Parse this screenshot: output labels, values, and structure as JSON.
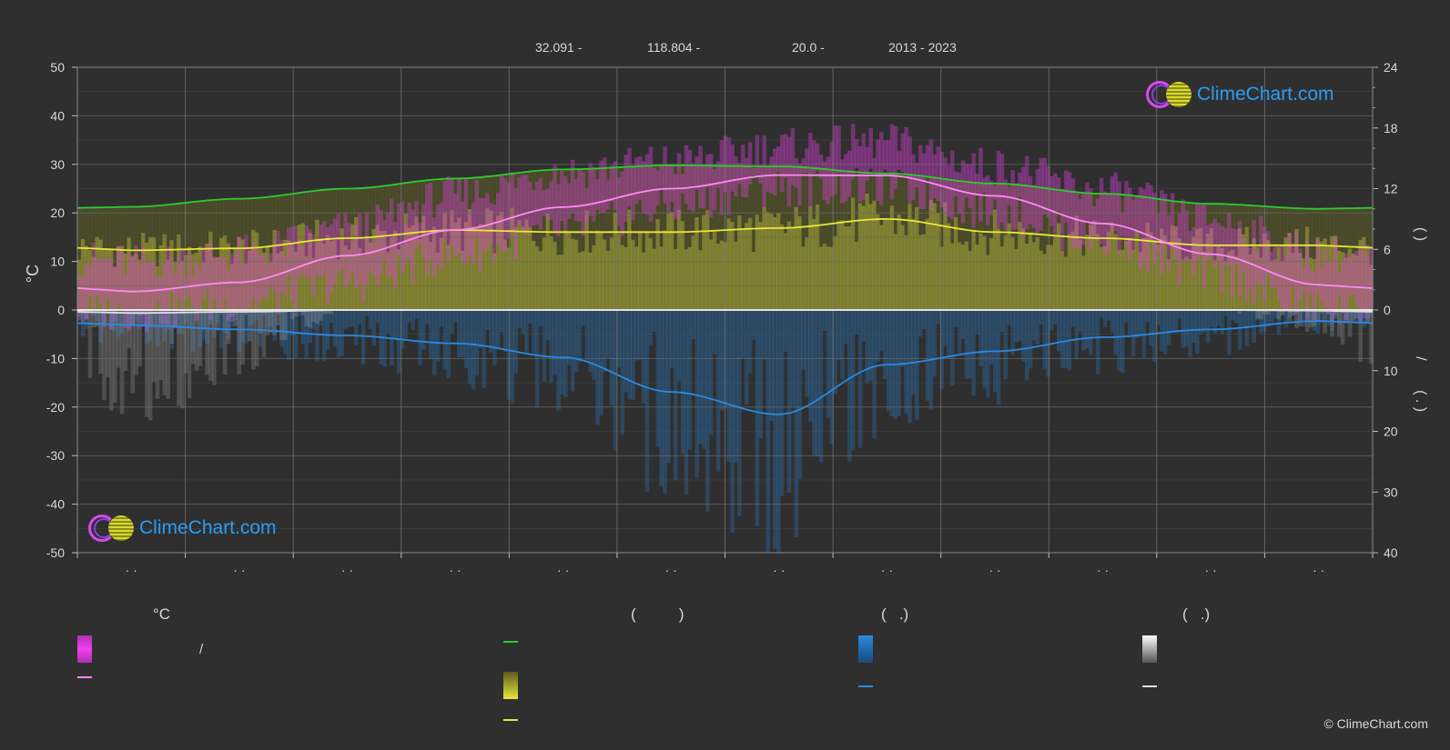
{
  "header": {
    "lat": "32.091 -",
    "lon": "118.804 -",
    "elev": "20.0 -",
    "period": "2013 - 2023"
  },
  "watermark": {
    "text": "ClimeChart.com"
  },
  "copyright": "© ClimeChart.com",
  "colors": {
    "background": "#2f2f2f",
    "temp_range": "#e040e0",
    "daylight": "#2ecc2e",
    "sunshine": "#e8e83a",
    "precip": "#2a8ae0",
    "snow": "#e0e0e0",
    "brand": "#2a9df4"
  },
  "legend": {
    "temp_title": "°C",
    "sun_title": "(          )",
    "rain_title": "(   .)",
    "snow_title": "(   .)",
    "temp_range_label": "/",
    "temp_mean_label": "",
    "daylight_label": "",
    "sunshine_label": "",
    "sunshine_mean_label": "",
    "rain_label": "",
    "rain_mean_label": "",
    "snow_label": "",
    "snow_mean_label": ""
  },
  "chart_data": {
    "type": "area",
    "title": "",
    "ylabel_left": "°C",
    "ylabel_right_top": "(   )",
    "ylabel_right_bottom": "/\n(  .  )",
    "ylim_left": [
      -50,
      50
    ],
    "left_ticks": [
      50,
      40,
      30,
      20,
      10,
      0,
      -10,
      -20,
      -30,
      -40,
      -50
    ],
    "right_ticks_top": [
      24,
      18,
      12,
      6,
      0
    ],
    "right_ticks_bottom": [
      10,
      20,
      30,
      40
    ],
    "month_labels": [
      "· ·",
      "· ·",
      "· ·",
      "· ·",
      "· ·",
      "· ·",
      "· ·",
      "· ·",
      "· ·",
      "· ·",
      "· ·",
      "· ·"
    ],
    "x": [
      0.5,
      1.5,
      2.5,
      3.5,
      4.5,
      5.5,
      6.5,
      7.5,
      8.5,
      9.5,
      10.5,
      11.5
    ],
    "grid": true,
    "series": [
      {
        "name": "",
        "kind": "temp_max",
        "values": [
          8,
          10,
          15,
          22,
          27,
          29,
          32,
          33,
          28,
          23,
          17,
          10
        ]
      },
      {
        "name": "",
        "kind": "temp_min",
        "values": [
          0,
          2,
          6,
          12,
          17,
          22,
          26,
          26,
          21,
          15,
          8,
          1
        ]
      },
      {
        "name": "",
        "kind": "temp_mean",
        "values": [
          3.8,
          5.7,
          11.2,
          16.5,
          21.2,
          25.0,
          27.8,
          27.7,
          23.5,
          17.8,
          11.5,
          5.2
        ]
      },
      {
        "name": "",
        "kind": "daylight_hours",
        "values": [
          10.2,
          11.0,
          12.0,
          13.0,
          13.9,
          14.3,
          14.2,
          13.5,
          12.5,
          11.5,
          10.5,
          10.0
        ]
      },
      {
        "name": "",
        "kind": "sunshine_hours",
        "values": [
          5.9,
          6.1,
          7.1,
          7.9,
          7.7,
          7.7,
          8.1,
          9.0,
          7.7,
          7.1,
          6.4,
          6.4
        ]
      },
      {
        "name": "",
        "kind": "precip_mm",
        "values": [
          2.5,
          3.2,
          4.2,
          5.5,
          7.8,
          13.5,
          17.2,
          9.0,
          6.8,
          4.5,
          3.2,
          1.8
        ]
      },
      {
        "name": "",
        "kind": "snow_mm",
        "values": [
          0.5,
          0.3,
          0.0,
          0.0,
          0.0,
          0.0,
          0.0,
          0.0,
          0.0,
          0.0,
          0.0,
          0.1
        ]
      }
    ]
  }
}
